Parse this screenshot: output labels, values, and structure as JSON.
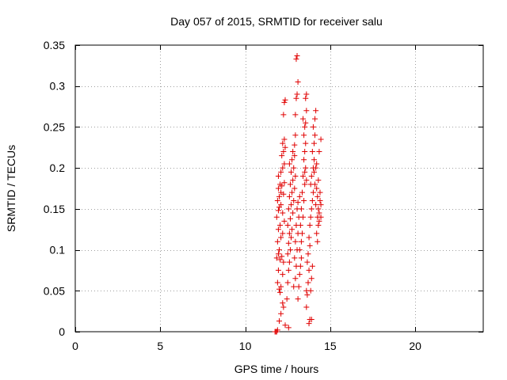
{
  "chart_data": {
    "type": "scatter",
    "title": "Day 057 of 2015, SRMTID for receiver salu",
    "xlabel": "GPS time / hours",
    "ylabel": "SRMTID / TECUs",
    "xlim": [
      0,
      24
    ],
    "ylim": [
      0,
      0.35
    ],
    "xticks": [
      0,
      5,
      10,
      15,
      20
    ],
    "xtick_labels": [
      "0",
      "5",
      "10",
      "15",
      "20"
    ],
    "yticks": [
      0,
      0.05,
      0.1,
      0.15,
      0.2,
      0.25,
      0.3,
      0.35
    ],
    "ytick_labels": [
      "0",
      "0.05",
      "0.1",
      "0.15",
      "0.2",
      "0.25",
      "0.3",
      "0.35"
    ],
    "grid": true,
    "marker": "plus",
    "color": "#e00000",
    "series": [
      {
        "name": "SRMTID",
        "points": [
          [
            11.75,
            0.0
          ],
          [
            11.8,
            0.0
          ],
          [
            11.85,
            0.0
          ],
          [
            11.9,
            0.002
          ],
          [
            12.0,
            0.013
          ],
          [
            12.35,
            0.008
          ],
          [
            12.55,
            0.005
          ],
          [
            12.1,
            0.022
          ],
          [
            12.2,
            0.035
          ],
          [
            12.25,
            0.03
          ],
          [
            11.9,
            0.06
          ],
          [
            12.0,
            0.052
          ],
          [
            12.05,
            0.048
          ],
          [
            12.1,
            0.055
          ],
          [
            12.2,
            0.07
          ],
          [
            11.95,
            0.075
          ],
          [
            11.85,
            0.09
          ],
          [
            11.95,
            0.095
          ],
          [
            12.05,
            0.088
          ],
          [
            12.15,
            0.092
          ],
          [
            12.25,
            0.085
          ],
          [
            12.0,
            0.1
          ],
          [
            11.9,
            0.11
          ],
          [
            12.1,
            0.115
          ],
          [
            12.2,
            0.12
          ],
          [
            11.95,
            0.125
          ],
          [
            12.05,
            0.13
          ],
          [
            12.3,
            0.135
          ],
          [
            11.85,
            0.14
          ],
          [
            11.95,
            0.148
          ],
          [
            12.0,
            0.152
          ],
          [
            12.1,
            0.155
          ],
          [
            12.2,
            0.145
          ],
          [
            11.9,
            0.16
          ],
          [
            12.0,
            0.165
          ],
          [
            12.1,
            0.17
          ],
          [
            12.25,
            0.168
          ],
          [
            11.95,
            0.175
          ],
          [
            12.05,
            0.18
          ],
          [
            12.15,
            0.178
          ],
          [
            12.3,
            0.182
          ],
          [
            11.95,
            0.19
          ],
          [
            12.1,
            0.195
          ],
          [
            12.2,
            0.2
          ],
          [
            12.3,
            0.205
          ],
          [
            12.15,
            0.215
          ],
          [
            12.25,
            0.22
          ],
          [
            12.35,
            0.225
          ],
          [
            12.3,
            0.235
          ],
          [
            12.2,
            0.23
          ],
          [
            12.25,
            0.265
          ],
          [
            12.3,
            0.28
          ],
          [
            12.35,
            0.283
          ],
          [
            12.45,
            0.04
          ],
          [
            12.5,
            0.06
          ],
          [
            12.55,
            0.075
          ],
          [
            12.6,
            0.085
          ],
          [
            12.5,
            0.095
          ],
          [
            12.65,
            0.1
          ],
          [
            12.55,
            0.108
          ],
          [
            12.7,
            0.115
          ],
          [
            12.6,
            0.12
          ],
          [
            12.75,
            0.125
          ],
          [
            12.5,
            0.13
          ],
          [
            12.65,
            0.138
          ],
          [
            12.8,
            0.145
          ],
          [
            12.55,
            0.15
          ],
          [
            12.7,
            0.155
          ],
          [
            12.85,
            0.16
          ],
          [
            12.6,
            0.165
          ],
          [
            12.75,
            0.17
          ],
          [
            12.9,
            0.175
          ],
          [
            12.65,
            0.18
          ],
          [
            12.8,
            0.185
          ],
          [
            12.95,
            0.19
          ],
          [
            12.7,
            0.195
          ],
          [
            12.85,
            0.2
          ],
          [
            12.6,
            0.205
          ],
          [
            12.75,
            0.21
          ],
          [
            12.9,
            0.215
          ],
          [
            12.8,
            0.22
          ],
          [
            12.9,
            0.228
          ],
          [
            12.95,
            0.24
          ],
          [
            12.85,
            0.055
          ],
          [
            12.95,
            0.065
          ],
          [
            13.0,
            0.08
          ],
          [
            12.9,
            0.09
          ],
          [
            13.05,
            0.1
          ],
          [
            12.95,
            0.11
          ],
          [
            13.1,
            0.12
          ],
          [
            13.0,
            0.13
          ],
          [
            13.15,
            0.14
          ],
          [
            13.05,
            0.15
          ],
          [
            13.1,
            0.158
          ],
          [
            13.2,
            0.165
          ],
          [
            12.95,
            0.265
          ],
          [
            13.0,
            0.285
          ],
          [
            13.05,
            0.29
          ],
          [
            13.1,
            0.305
          ],
          [
            13.0,
            0.333
          ],
          [
            13.05,
            0.337
          ],
          [
            13.1,
            0.04
          ],
          [
            13.15,
            0.055
          ],
          [
            13.2,
            0.07
          ],
          [
            13.25,
            0.08
          ],
          [
            13.3,
            0.09
          ],
          [
            13.2,
            0.1
          ],
          [
            13.3,
            0.11
          ],
          [
            13.35,
            0.12
          ],
          [
            13.25,
            0.13
          ],
          [
            13.4,
            0.14
          ],
          [
            13.3,
            0.15
          ],
          [
            13.45,
            0.16
          ],
          [
            13.35,
            0.17
          ],
          [
            13.5,
            0.18
          ],
          [
            13.4,
            0.19
          ],
          [
            13.55,
            0.2
          ],
          [
            13.45,
            0.21
          ],
          [
            13.5,
            0.22
          ],
          [
            13.55,
            0.23
          ],
          [
            13.45,
            0.24
          ],
          [
            13.5,
            0.25
          ],
          [
            13.4,
            0.26
          ],
          [
            13.55,
            0.255
          ],
          [
            13.6,
            0.27
          ],
          [
            13.55,
            0.285
          ],
          [
            13.6,
            0.29
          ],
          [
            13.5,
            0.195
          ],
          [
            13.6,
            0.185
          ],
          [
            13.6,
            0.03
          ],
          [
            13.65,
            0.045
          ],
          [
            13.7,
            0.06
          ],
          [
            13.75,
            0.075
          ],
          [
            13.65,
            0.085
          ],
          [
            13.7,
            0.095
          ],
          [
            13.8,
            0.105
          ],
          [
            13.75,
            0.115
          ],
          [
            13.7,
            0.06
          ],
          [
            13.6,
            0.05
          ],
          [
            13.75,
            0.01
          ],
          [
            13.8,
            0.015
          ],
          [
            13.9,
            0.015
          ],
          [
            13.85,
            0.05
          ],
          [
            13.9,
            0.065
          ],
          [
            13.95,
            0.08
          ],
          [
            13.8,
            0.13
          ],
          [
            13.85,
            0.14
          ],
          [
            13.9,
            0.15
          ],
          [
            13.95,
            0.16
          ],
          [
            14.0,
            0.17
          ],
          [
            13.85,
            0.18
          ],
          [
            13.9,
            0.19
          ],
          [
            14.0,
            0.2
          ],
          [
            14.05,
            0.21
          ],
          [
            13.95,
            0.22
          ],
          [
            14.05,
            0.23
          ],
          [
            14.1,
            0.24
          ],
          [
            14.0,
            0.25
          ],
          [
            14.1,
            0.26
          ],
          [
            14.15,
            0.27
          ],
          [
            14.05,
            0.195
          ],
          [
            14.15,
            0.2
          ],
          [
            14.2,
            0.205
          ],
          [
            14.1,
            0.18
          ],
          [
            14.2,
            0.175
          ],
          [
            14.25,
            0.165
          ],
          [
            14.15,
            0.155
          ],
          [
            14.3,
            0.15
          ],
          [
            14.25,
            0.14
          ],
          [
            14.35,
            0.145
          ],
          [
            14.3,
            0.13
          ],
          [
            14.2,
            0.12
          ],
          [
            14.25,
            0.11
          ],
          [
            14.35,
            0.135
          ],
          [
            14.4,
            0.16
          ],
          [
            14.45,
            0.155
          ],
          [
            14.4,
            0.17
          ],
          [
            14.3,
            0.185
          ],
          [
            14.45,
            0.14
          ],
          [
            14.35,
            0.22
          ],
          [
            14.45,
            0.235
          ]
        ]
      }
    ]
  }
}
